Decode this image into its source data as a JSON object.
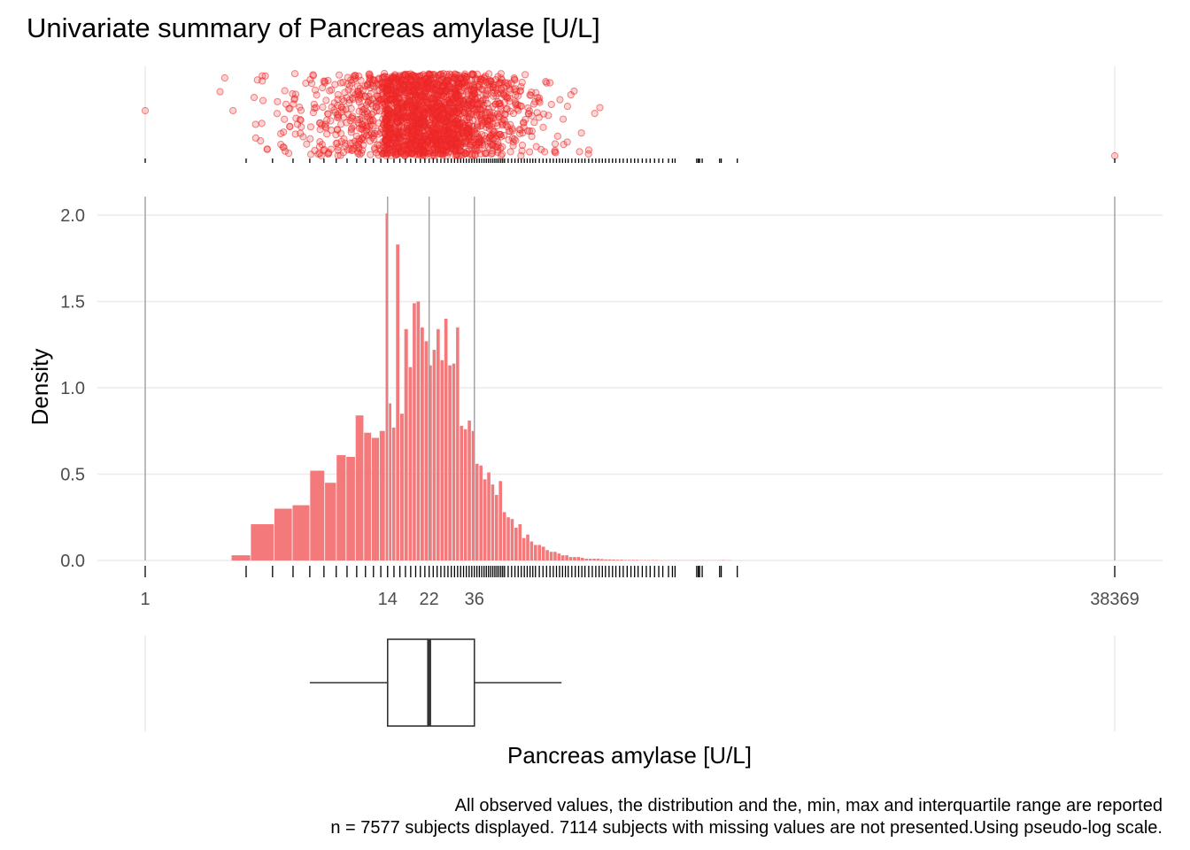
{
  "title": "Univariate summary of Pancreas amylase [U/L]",
  "caption_line1": "All observed values, the distribution and the, min, max and interquartile range are reported",
  "caption_line2": "n = 7577 subjects displayed. 7114 subjects with missing values are not presented.Using pseudo-log scale.",
  "colors": {
    "bars": "#f3797b",
    "points": "#f03030",
    "rug": "#000000"
  },
  "chart_data": {
    "type": "bar",
    "xlabel": "Pancreas amylase [U/L]",
    "ylabel": "Density",
    "x_scale": "pseudo-log",
    "x_ticks": [
      "1",
      "14",
      "22",
      "36",
      "38369"
    ],
    "x_tick_values": [
      1,
      14,
      22,
      36,
      38369
    ],
    "y_ticks": [
      "0.0",
      "0.5",
      "1.0",
      "1.5",
      "2.0"
    ],
    "y_tick_values": [
      0,
      0.5,
      1.0,
      1.5,
      2.0
    ],
    "ylim": [
      0,
      2.1
    ],
    "grid": true,
    "legend": "none",
    "histogram": {
      "bin_centers": [
        2.7,
        3.7,
        4.5,
        5.5,
        6.6,
        7.6,
        8.5,
        9.4,
        10.4,
        11.3,
        12.3,
        13.4,
        14.0,
        14.4,
        15.0,
        15.7,
        16.4,
        17.2,
        18.0,
        18.8,
        19.6,
        20.5,
        21.4,
        22.4,
        23.3,
        24.4,
        25.4,
        26.5,
        27.7,
        28.9,
        30.1,
        31.4,
        32.8,
        34.2,
        35.7,
        37.2,
        38.8,
        40.5,
        42.3,
        44.1,
        46.0,
        48.0,
        50.1,
        52.3,
        54.5,
        56.9,
        59.4,
        61.9,
        64.6,
        67.4,
        70.3,
        73.4,
        76.6,
        79.9,
        83.4,
        87.0,
        90.8,
        94.7,
        98.8,
        103.1,
        107.6,
        112.3,
        117.2,
        122.3,
        127.6,
        133.1,
        138.9,
        144.9,
        151.2,
        157.8,
        164.6,
        171.8,
        179.3,
        187.1,
        195.2,
        203.6,
        212.5,
        221.7,
        231.3,
        241.4,
        251.9,
        262.8,
        274.2,
        286.1,
        298.6,
        311.5,
        325.1,
        339.2,
        353.9,
        369.3,
        385.3,
        402.0,
        419.5,
        437.7,
        456.7,
        476.5,
        497.2,
        518.8,
        541.3,
        564.8
      ],
      "density": [
        0.03,
        0.21,
        0.3,
        0.32,
        0.52,
        0.45,
        0.61,
        0.6,
        0.84,
        0.74,
        0.71,
        0.75,
        2.01,
        0.91,
        0.77,
        1.83,
        0.85,
        1.34,
        1.12,
        1.49,
        1.5,
        1.35,
        1.27,
        1.13,
        1.22,
        1.34,
        1.16,
        1.4,
        1.13,
        1.14,
        1.35,
        0.78,
        0.76,
        0.81,
        0.75,
        0.56,
        0.55,
        0.47,
        0.51,
        0.44,
        0.38,
        0.46,
        0.28,
        0.25,
        0.24,
        0.19,
        0.21,
        0.13,
        0.15,
        0.11,
        0.09,
        0.09,
        0.08,
        0.06,
        0.05,
        0.05,
        0.04,
        0.03,
        0.03,
        0.02,
        0.02,
        0.02,
        0.015,
        0.01,
        0.01,
        0.01,
        0.01,
        0.008,
        0.006,
        0.006,
        0.005,
        0.004,
        0.004,
        0.003,
        0.003,
        0.003,
        0.003,
        0.002,
        0.002,
        0.002,
        0.002,
        0.002,
        0.001,
        0.001,
        0.001,
        0.001,
        0.001,
        0.001,
        0.001,
        0.001,
        0.001,
        0.001,
        0.001,
        0.001,
        0.001,
        0.001,
        0.001,
        0.001,
        0.002,
        0.001
      ]
    },
    "boxplot": {
      "lower_whisker": 6,
      "q1": 14,
      "median": 22,
      "q3": 36,
      "upper_whisker": 93
    },
    "summary_lines": [
      1,
      14,
      22,
      36,
      38369
    ],
    "rug_values": [
      1,
      3,
      4,
      5,
      6,
      7,
      8,
      9,
      10,
      11,
      12,
      13,
      14,
      15,
      16,
      17,
      18,
      19,
      20,
      21,
      22,
      23,
      24,
      25,
      26,
      27,
      28,
      29,
      30,
      31,
      32,
      33,
      34,
      35,
      36,
      37,
      38,
      39,
      40,
      41,
      42,
      43,
      44,
      45,
      46,
      47,
      48,
      49,
      50,
      52,
      54,
      56,
      58,
      60,
      62,
      64,
      66,
      68,
      70,
      73,
      76,
      79,
      82,
      85,
      88,
      91,
      94,
      97,
      100,
      104,
      108,
      112,
      116,
      120,
      125,
      130,
      135,
      140,
      145,
      150,
      156,
      162,
      168,
      175,
      182,
      190,
      198,
      206,
      214,
      224,
      234,
      244,
      256,
      268,
      280,
      298,
      311,
      320,
      405,
      412,
      418,
      430,
      520,
      529,
      630,
      38369
    ]
  }
}
